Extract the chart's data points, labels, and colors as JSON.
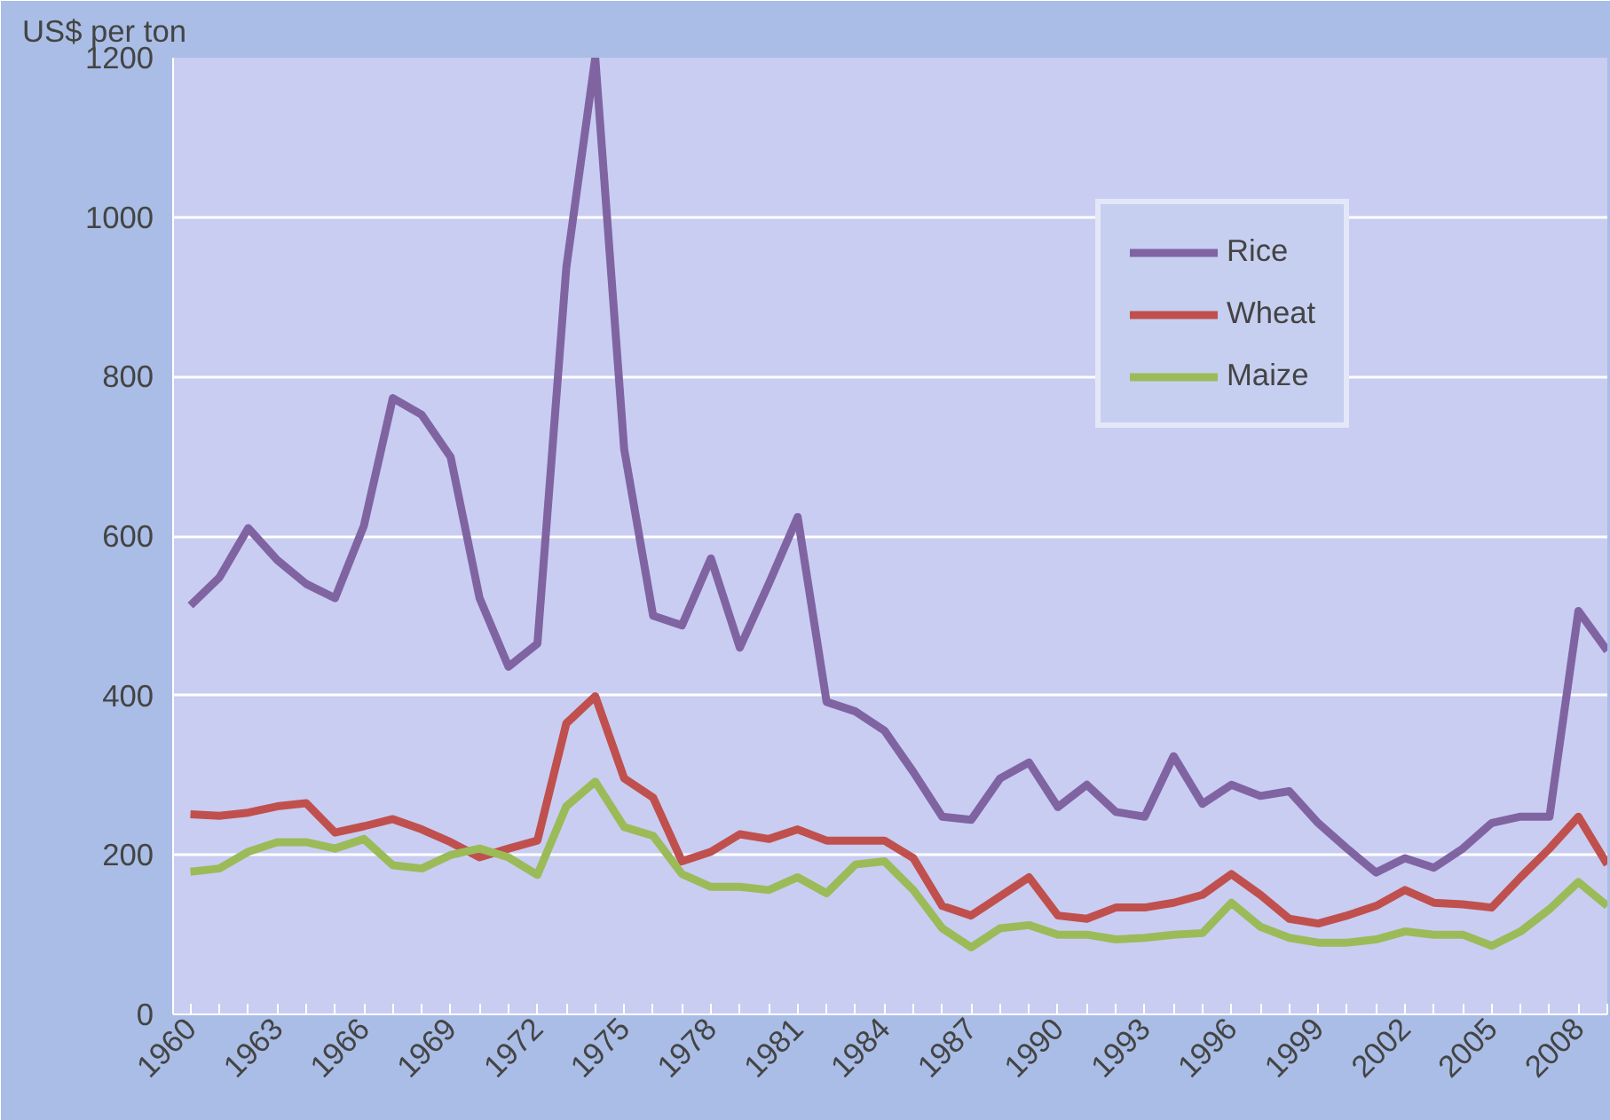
{
  "chart_data": {
    "type": "line",
    "ylabel": "US$ per ton",
    "x": [
      1960,
      1961,
      1962,
      1963,
      1964,
      1965,
      1966,
      1967,
      1968,
      1969,
      1970,
      1971,
      1972,
      1973,
      1974,
      1975,
      1976,
      1977,
      1978,
      1979,
      1980,
      1981,
      1982,
      1983,
      1984,
      1985,
      1986,
      1987,
      1988,
      1989,
      1990,
      1991,
      1992,
      1993,
      1994,
      1995,
      1996,
      1997,
      1998,
      1999,
      2000,
      2001,
      2002,
      2003,
      2004,
      2005,
      2006,
      2007,
      2008,
      2009
    ],
    "series": [
      {
        "name": "Rice",
        "color": "#8064a2",
        "values": [
          513,
          548,
          610,
          570,
          540,
          522,
          613,
          773,
          752,
          699,
          522,
          436,
          465,
          937,
          1200,
          709,
          500,
          488,
          572,
          460,
          540,
          624,
          392,
          380,
          356,
          304,
          248,
          244,
          296,
          316,
          260,
          288,
          254,
          248,
          324,
          264,
          288,
          274,
          280,
          240,
          208,
          178,
          196,
          184,
          208,
          240,
          248,
          248,
          506,
          456
        ]
      },
      {
        "name": "Wheat",
        "color": "#c0504d",
        "values": [
          251,
          249,
          253,
          261,
          265,
          228,
          236,
          245,
          232,
          216,
          197,
          208,
          218,
          365,
          399,
          296,
          272,
          192,
          204,
          226,
          220,
          232,
          218,
          218,
          218,
          196,
          136,
          124,
          148,
          172,
          124,
          120,
          134,
          134,
          140,
          150,
          176,
          150,
          120,
          114,
          124,
          136,
          156,
          140,
          138,
          134,
          172,
          208,
          248,
          188
        ]
      },
      {
        "name": "Maize",
        "color": "#9bbb59",
        "values": [
          179,
          183,
          204,
          216,
          216,
          208,
          220,
          187,
          183,
          200,
          208,
          197,
          175,
          261,
          292,
          235,
          224,
          176,
          160,
          160,
          156,
          172,
          152,
          188,
          192,
          156,
          108,
          84,
          108,
          112,
          100,
          100,
          94,
          96,
          100,
          102,
          140,
          110,
          96,
          90,
          90,
          94,
          104,
          100,
          100,
          86,
          104,
          132,
          166,
          136
        ]
      }
    ],
    "xlim": [
      1959.4,
      2009
    ],
    "xticks": [
      1960,
      1963,
      1966,
      1969,
      1972,
      1975,
      1978,
      1981,
      1984,
      1987,
      1990,
      1993,
      1996,
      1999,
      2002,
      2005,
      2008
    ],
    "ylim": [
      0,
      1200
    ],
    "yticks": [
      0,
      200,
      400,
      600,
      800,
      1000,
      1200
    ],
    "grid": "y",
    "legend": "top right",
    "marker": "none",
    "line_style": "solid"
  }
}
